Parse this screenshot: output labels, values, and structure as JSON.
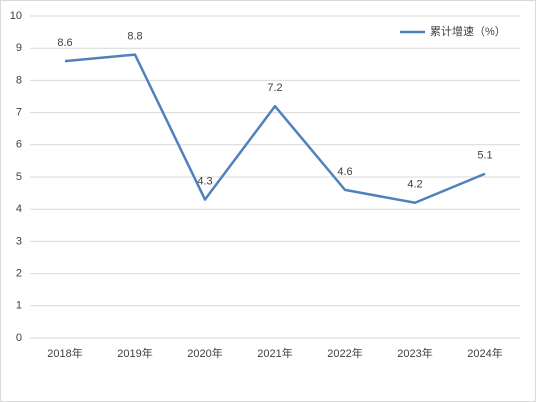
{
  "chart_data": {
    "type": "line",
    "categories": [
      "2018年",
      "2019年",
      "2020年",
      "2021年",
      "2022年",
      "2023年",
      "2024年"
    ],
    "series": [
      {
        "name": "累计增速（%）",
        "color": "#4f81bd",
        "values": [
          8.6,
          8.8,
          4.3,
          7.2,
          4.6,
          4.2,
          5.1
        ]
      }
    ],
    "ylim": [
      0,
      10
    ],
    "yticks": [
      0,
      1,
      2,
      3,
      4,
      5,
      6,
      7,
      8,
      9,
      10
    ],
    "grid": true,
    "legend": "top-right"
  }
}
